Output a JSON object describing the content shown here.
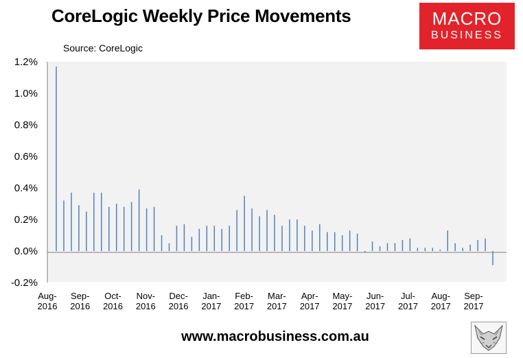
{
  "title": "CoreLogic Weekly Price Movements",
  "source": "Source: CoreLogic",
  "logo": {
    "line1": "MACRO",
    "line2": "BUSINESS"
  },
  "footer": "www.macrobusiness.com.au",
  "colors": {
    "bar": "#4f81bd",
    "plot_bg": "#f2f2f2",
    "logo_bg": "#e3232b"
  },
  "chart_data": {
    "type": "bar",
    "ylim": [
      -0.2,
      1.2
    ],
    "yticks": [
      "-0.2%",
      "0.0%",
      "0.2%",
      "0.4%",
      "0.6%",
      "0.8%",
      "1.0%",
      "1.2%"
    ],
    "xtick_labels": [
      [
        "Aug-",
        "2016"
      ],
      [
        "Sep-",
        "2016"
      ],
      [
        "Oct-",
        "2016"
      ],
      [
        "Nov-",
        "2016"
      ],
      [
        "Dec-",
        "2016"
      ],
      [
        "Jan-",
        "2017"
      ],
      [
        "Feb-",
        "2017"
      ],
      [
        "Mar-",
        "2017"
      ],
      [
        "Apr-",
        "2017"
      ],
      [
        "May-",
        "2017"
      ],
      [
        "Jun-",
        "2017"
      ],
      [
        "Jul-",
        "2017"
      ],
      [
        "Aug-",
        "2017"
      ],
      [
        "Sep-",
        "2017"
      ]
    ],
    "values": [
      1.17,
      0.32,
      0.37,
      0.29,
      0.25,
      0.37,
      0.37,
      0.28,
      0.3,
      0.28,
      0.31,
      0.39,
      0.27,
      0.28,
      0.1,
      0.05,
      0.16,
      0.17,
      0.09,
      0.14,
      0.16,
      0.16,
      0.14,
      0.16,
      0.26,
      0.35,
      0.27,
      0.22,
      0.26,
      0.23,
      0.16,
      0.2,
      0.2,
      0.16,
      0.13,
      0.17,
      0.12,
      0.12,
      0.1,
      0.13,
      0.11,
      -0.01,
      0.06,
      0.03,
      0.05,
      0.05,
      0.07,
      0.08,
      0.02,
      0.02,
      0.02,
      0.01,
      0.13,
      0.05,
      0.02,
      0.04,
      0.07,
      0.08,
      -0.09
    ]
  }
}
